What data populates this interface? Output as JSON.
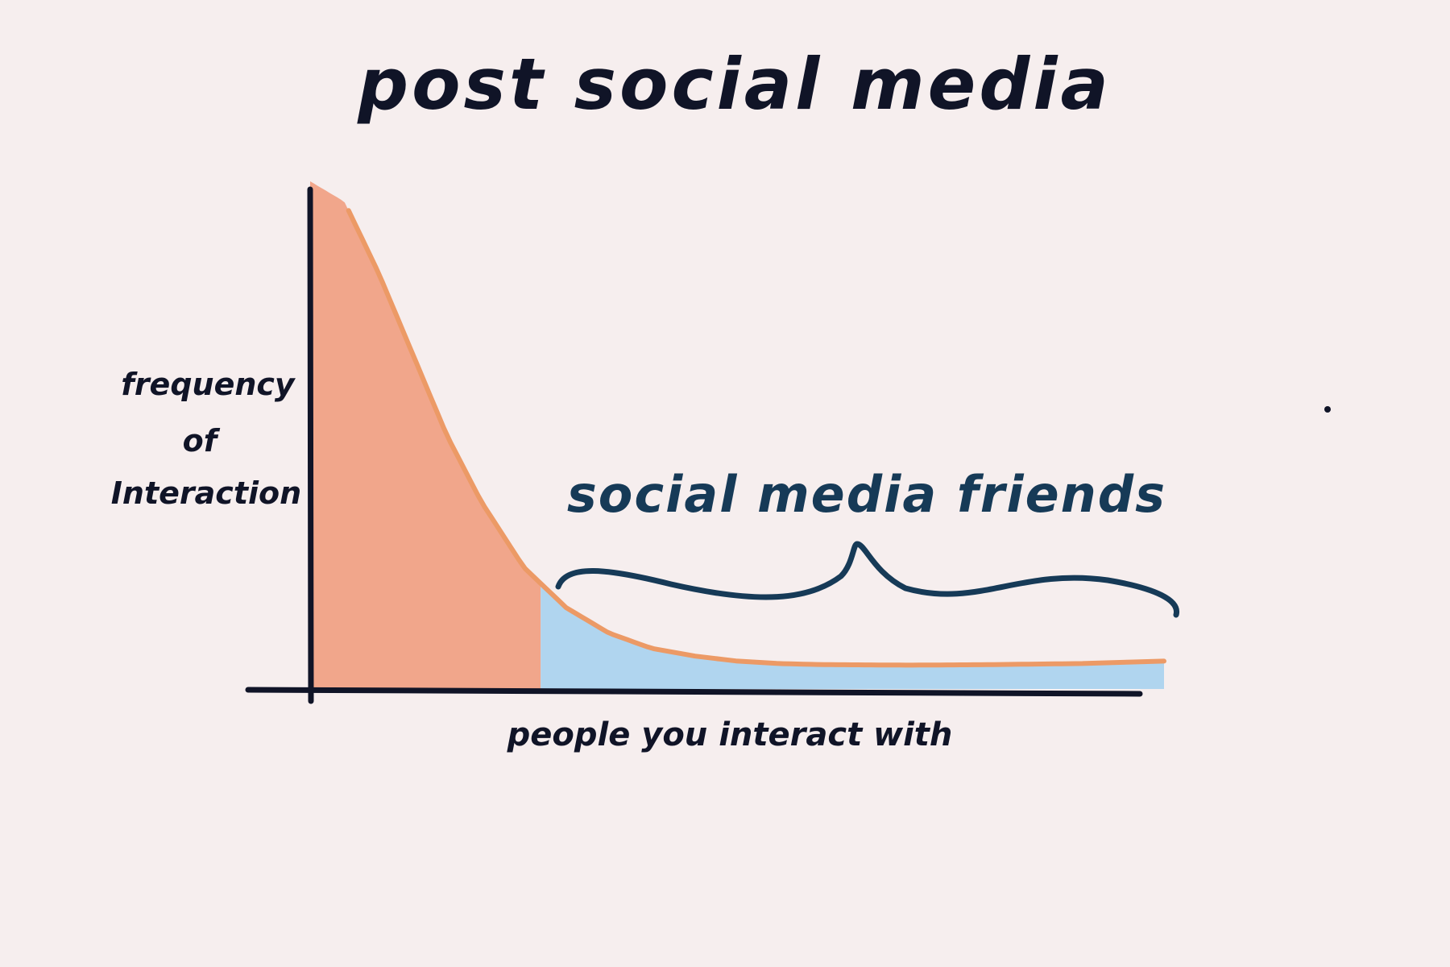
{
  "chart_data": {
    "type": "area",
    "title": "post social media",
    "xlabel": "people you interact with",
    "ylabel": [
      "frequency",
      "of",
      "Interaction"
    ],
    "x": [
      0,
      0.04,
      0.08,
      0.12,
      0.16,
      0.2,
      0.25,
      0.3,
      0.35,
      0.4,
      0.45,
      0.5,
      0.55,
      0.6,
      0.7,
      0.8,
      0.9,
      1.0
    ],
    "y": [
      1.0,
      0.96,
      0.82,
      0.66,
      0.5,
      0.37,
      0.24,
      0.16,
      0.11,
      0.08,
      0.065,
      0.055,
      0.05,
      0.048,
      0.047,
      0.048,
      0.05,
      0.055
    ],
    "series": [
      {
        "x_range": [
          0,
          0.27
        ],
        "color": "#f0a185"
      },
      {
        "name": "social media friends",
        "x_range": [
          0.27,
          1.0
        ],
        "color": "#a9d1ee"
      }
    ],
    "annotations": [
      {
        "text": "social media friends",
        "span": [
          0.3,
          1.0
        ],
        "color": "#163a57"
      }
    ],
    "xlim": [
      0,
      1
    ],
    "ylim": [
      0,
      1
    ],
    "grid": false,
    "line_color": "#ec9a66",
    "axis_color": "#101427"
  }
}
